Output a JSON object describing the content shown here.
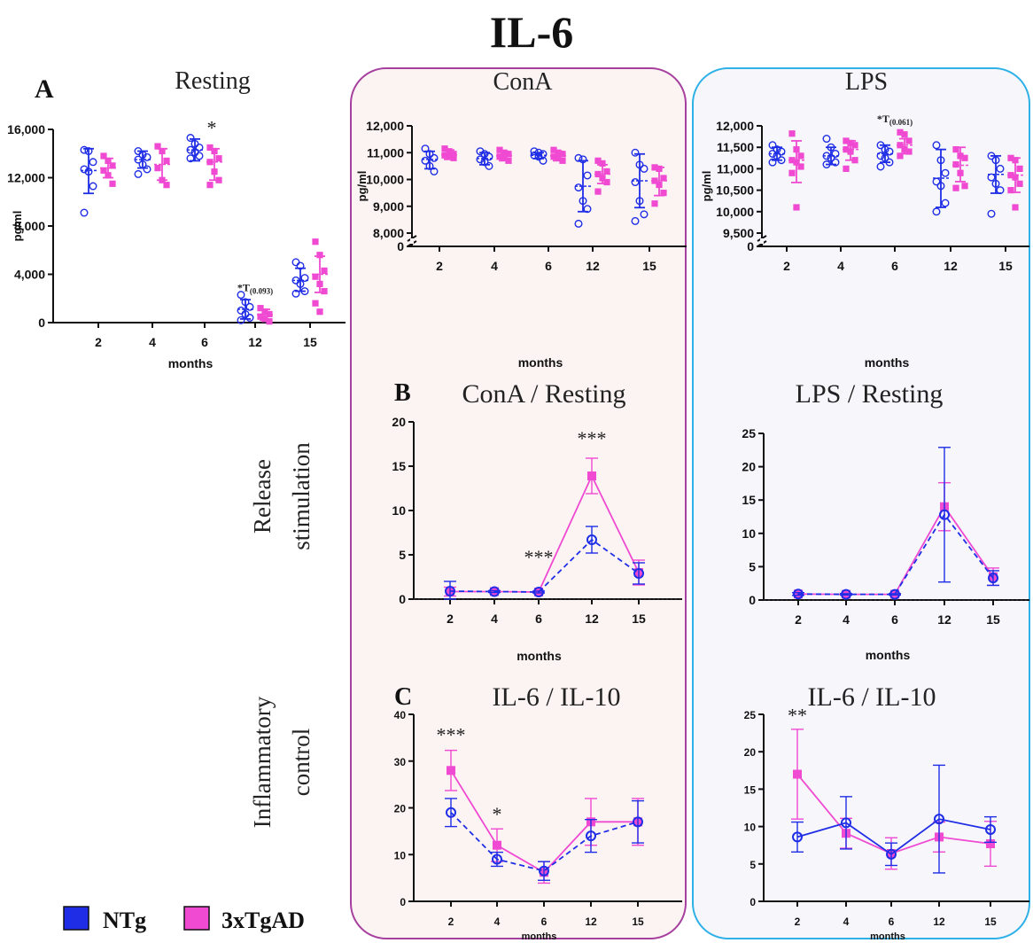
{
  "figure_title": "IL-6",
  "colors": {
    "ntg": "#1f2ee6",
    "tg": "#f04ad2",
    "conA_panel": "#a63f9d",
    "lps_panel": "#2fb1e8",
    "conA_bg": "#fcf4f3",
    "lps_bg": "#f6f6fb"
  },
  "section_letters": {
    "a": "A",
    "b": "B",
    "c": "C"
  },
  "row_labels": {
    "release": [
      "Release",
      "stimulation"
    ],
    "inflammatory": [
      "Inflammatory",
      "control"
    ]
  },
  "legend": [
    {
      "label": "NTg",
      "color": "#1f2ee6"
    },
    {
      "label": "3xTgAD",
      "color": "#f04ad2"
    }
  ],
  "chart_data": [
    {
      "id": "resting",
      "type": "scatter",
      "title": "Resting",
      "xlabel": "months",
      "ylabel": "pg/ml",
      "categories": [
        "2",
        "4",
        "6",
        "12",
        "15"
      ],
      "yticks": [
        "0",
        "4,000",
        "8,000",
        "12,000",
        "16,000"
      ],
      "ylim": [
        0,
        16000
      ],
      "series": [
        {
          "name": "NTg",
          "mean": [
            12600,
            13500,
            14300,
            1100,
            3500
          ],
          "sd_low": [
            10700,
            12800,
            13400,
            300,
            2600
          ],
          "sd_high": [
            14400,
            14200,
            15200,
            1900,
            4500
          ],
          "points": [
            [
              14300,
              14200,
              13300,
              12700,
              12500,
              11300,
              9100
            ],
            [
              14200,
              13900,
              13700,
              13500,
              13100,
              12700,
              12300
            ],
            [
              15300,
              14800,
              14500,
              14300,
              14100,
              13800,
              13600
            ],
            [
              2300,
              1700,
              1300,
              1000,
              700,
              400,
              200
            ],
            [
              5000,
              4700,
              3700,
              3500,
              3200,
              2600,
              2400
            ]
          ]
        },
        {
          "name": "3xTgAD",
          "mean": [
            12800,
            13100,
            13300,
            650,
            4000
          ],
          "sd_low": [
            12000,
            11800,
            11800,
            200,
            2500
          ],
          "sd_high": [
            13600,
            14400,
            14400,
            1100,
            5500
          ],
          "points": [
            [
              13800,
              13400,
              13000,
              12600,
              12200,
              11500
            ],
            [
              14600,
              14200,
              13400,
              12800,
              11800,
              11400
            ],
            [
              14500,
              14200,
              13600,
              13300,
              12500,
              11800,
              11400
            ],
            [
              1200,
              900,
              700,
              500,
              300,
              100
            ],
            [
              6700,
              5600,
              4300,
              3800,
              3200,
              2600,
              1600,
              900
            ]
          ]
        }
      ],
      "annotations": [
        {
          "category": "6",
          "text": "*",
          "y": 15300
        },
        {
          "category": "12",
          "text": "*T",
          "sub": "(0.093)",
          "y": 2300
        }
      ]
    },
    {
      "id": "conA",
      "type": "scatter",
      "title": "ConA",
      "xlabel": "months",
      "ylabel": "pg/ml",
      "categories": [
        "2",
        "4",
        "6",
        "12",
        "15"
      ],
      "yticks": [
        "0",
        "8,000",
        "9,000",
        "10,000",
        "11,000",
        "12,000"
      ],
      "ylim": [
        8000,
        12000
      ],
      "axis_break": true,
      "series": [
        {
          "name": "NTg",
          "mean": [
            10750,
            10780,
            10900,
            9750,
            9950
          ],
          "sd_low": [
            10400,
            10550,
            10780,
            8800,
            8950
          ],
          "sd_high": [
            11050,
            11000,
            11000,
            10700,
            10950
          ],
          "points": [
            [
              11150,
              10950,
              10800,
              10700,
              10500,
              10300
            ],
            [
              11050,
              10950,
              10850,
              10750,
              10650,
              10500
            ],
            [
              11050,
              11000,
              10950,
              10900,
              10850,
              10700
            ],
            [
              10800,
              10750,
              10150,
              9700,
              9200,
              8900,
              8350
            ],
            [
              11000,
              10550,
              10400,
              9900,
              9200,
              8700,
              8450
            ]
          ]
        },
        {
          "name": "3xTgAD",
          "mean": [
            10920,
            10880,
            10880,
            10200,
            9950
          ],
          "sd_low": [
            10750,
            10700,
            10700,
            9850,
            9400
          ],
          "sd_high": [
            11100,
            11050,
            11050,
            10550,
            10450
          ],
          "points": [
            [
              11150,
              11050,
              10950,
              10900,
              10850,
              10800
            ],
            [
              11100,
              11000,
              10950,
              10850,
              10800,
              10700
            ],
            [
              11100,
              11000,
              10950,
              10850,
              10800,
              10700
            ],
            [
              10700,
              10600,
              10300,
              10200,
              10050,
              9900,
              9550
            ],
            [
              10450,
              10400,
              10050,
              9950,
              9800,
              9500,
              9100
            ]
          ]
        }
      ]
    },
    {
      "id": "lps",
      "type": "scatter",
      "title": "LPS",
      "xlabel": "months",
      "ylabel": "pg/ml",
      "categories": [
        "2",
        "4",
        "6",
        "12",
        "15"
      ],
      "yticks": [
        "0",
        "9,500",
        "10,000",
        "10,500",
        "11,000",
        "11,500",
        "12,000"
      ],
      "ylim": [
        9500,
        12000
      ],
      "axis_break": true,
      "series": [
        {
          "name": "NTg",
          "mean": [
            11350,
            11300,
            11350,
            10780,
            10870
          ],
          "sd_low": [
            11200,
            11100,
            11150,
            10100,
            10430
          ],
          "sd_high": [
            11500,
            11500,
            11550,
            11450,
            11300
          ],
          "points": [
            [
              11550,
              11450,
              11400,
              11350,
              11300,
              11200,
              11150
            ],
            [
              11700,
              11500,
              11350,
              11300,
              11250,
              11150,
              11100
            ],
            [
              11550,
              11450,
              11400,
              11300,
              11250,
              11150,
              11050
            ],
            [
              11550,
              11200,
              10900,
              10700,
              10600,
              10200,
              10000
            ],
            [
              11300,
              11200,
              11000,
              10800,
              10650,
              10500,
              9950
            ]
          ]
        },
        {
          "name": "3xTgAD",
          "mean": [
            11200,
            11450,
            11550,
            11080,
            10850
          ],
          "sd_low": [
            10680,
            11200,
            11350,
            10700,
            10450
          ],
          "sd_high": [
            11650,
            11650,
            11700,
            11500,
            11250
          ],
          "points": [
            [
              11820,
              11450,
              11300,
              11200,
              11150,
              11050,
              10900,
              10100
            ],
            [
              11650,
              11600,
              11550,
              11450,
              11400,
              11200,
              11000
            ],
            [
              11850,
              11800,
              11650,
              11550,
              11450,
              11400,
              11300
            ],
            [
              11450,
              11300,
              11250,
              11100,
              10900,
              10600,
              10550
            ],
            [
              11250,
              11200,
              11000,
              10850,
              10800,
              10650,
              10500,
              10100
            ]
          ]
        }
      ],
      "annotations": [
        {
          "category": "6",
          "text": "*T",
          "sub": "(0.061)",
          "y": 12000
        }
      ]
    },
    {
      "id": "conA_rest",
      "type": "line",
      "title": "ConA / Resting",
      "xlabel": "months",
      "categories": [
        "2",
        "4",
        "6",
        "12",
        "15"
      ],
      "yticks": [
        "0",
        "5",
        "10",
        "15",
        "20"
      ],
      "ylim": [
        0,
        20
      ],
      "series": [
        {
          "name": "NTg",
          "values": [
            0.9,
            0.85,
            0.8,
            6.7,
            2.9
          ],
          "err": [
            1.1,
            0.1,
            0.1,
            1.5,
            1.2
          ],
          "dashed": true
        },
        {
          "name": "3xTgAD",
          "values": [
            0.85,
            0.85,
            0.8,
            13.9,
            3.0
          ],
          "err": [
            0.5,
            0.1,
            0.1,
            2.0,
            1.4
          ]
        }
      ],
      "annotations": [
        {
          "category": "6",
          "text": "***",
          "y": 3.6
        },
        {
          "category": "12",
          "text": "***",
          "y": 17
        }
      ]
    },
    {
      "id": "lps_rest",
      "type": "line",
      "title": "LPS / Resting",
      "xlabel": "months",
      "categories": [
        "2",
        "4",
        "6",
        "12",
        "15"
      ],
      "yticks": [
        "0",
        "5",
        "10",
        "15",
        "20",
        "25"
      ],
      "ylim": [
        0,
        25
      ],
      "series": [
        {
          "name": "NTg",
          "values": [
            0.9,
            0.85,
            0.85,
            12.8,
            3.3
          ],
          "err": [
            0.2,
            0.1,
            0.1,
            10.1,
            1.1
          ],
          "dashed": true
        },
        {
          "name": "3xTgAD",
          "values": [
            0.9,
            0.85,
            0.85,
            14.0,
            3.5
          ],
          "err": [
            0.2,
            0.1,
            0.1,
            3.6,
            1.3
          ]
        }
      ]
    },
    {
      "id": "conA_il10",
      "type": "line",
      "title": "IL-6 / IL-10",
      "xlabel": "months",
      "categories": [
        "2",
        "4",
        "6",
        "12",
        "15"
      ],
      "yticks": [
        "0",
        "10",
        "20",
        "30",
        "40"
      ],
      "ylim": [
        0,
        40
      ],
      "series": [
        {
          "name": "NTg",
          "values": [
            19,
            9,
            6.5,
            14,
            17
          ],
          "err": [
            3,
            1.5,
            2,
            3.5,
            4.5
          ],
          "dashed": true
        },
        {
          "name": "3xTgAD",
          "values": [
            28,
            12,
            6.2,
            17,
            17
          ],
          "err": [
            4.3,
            3.5,
            2.3,
            5,
            5
          ]
        }
      ],
      "annotations": [
        {
          "category": "2",
          "text": "***",
          "y": 33.5
        },
        {
          "category": "4",
          "text": "*",
          "y": 16.5
        }
      ]
    },
    {
      "id": "lps_il10",
      "type": "line",
      "title": "IL-6 / IL-10",
      "xlabel": "months",
      "categories": [
        "2",
        "4",
        "6",
        "12",
        "15"
      ],
      "yticks": [
        "0",
        "5",
        "10",
        "15",
        "20",
        "25"
      ],
      "ylim": [
        0,
        25
      ],
      "series": [
        {
          "name": "NTg",
          "values": [
            8.6,
            10.5,
            6.3,
            11,
            9.6
          ],
          "err": [
            2,
            3.5,
            1.5,
            7.2,
            1.7
          ]
        },
        {
          "name": "3xTgAD",
          "values": [
            17,
            9.1,
            6.4,
            8.6,
            7.7
          ],
          "err": [
            6,
            2,
            2.1,
            2,
            3
          ]
        }
      ],
      "annotations": [
        {
          "category": "2",
          "text": "**",
          "y": 23.5
        }
      ]
    }
  ]
}
